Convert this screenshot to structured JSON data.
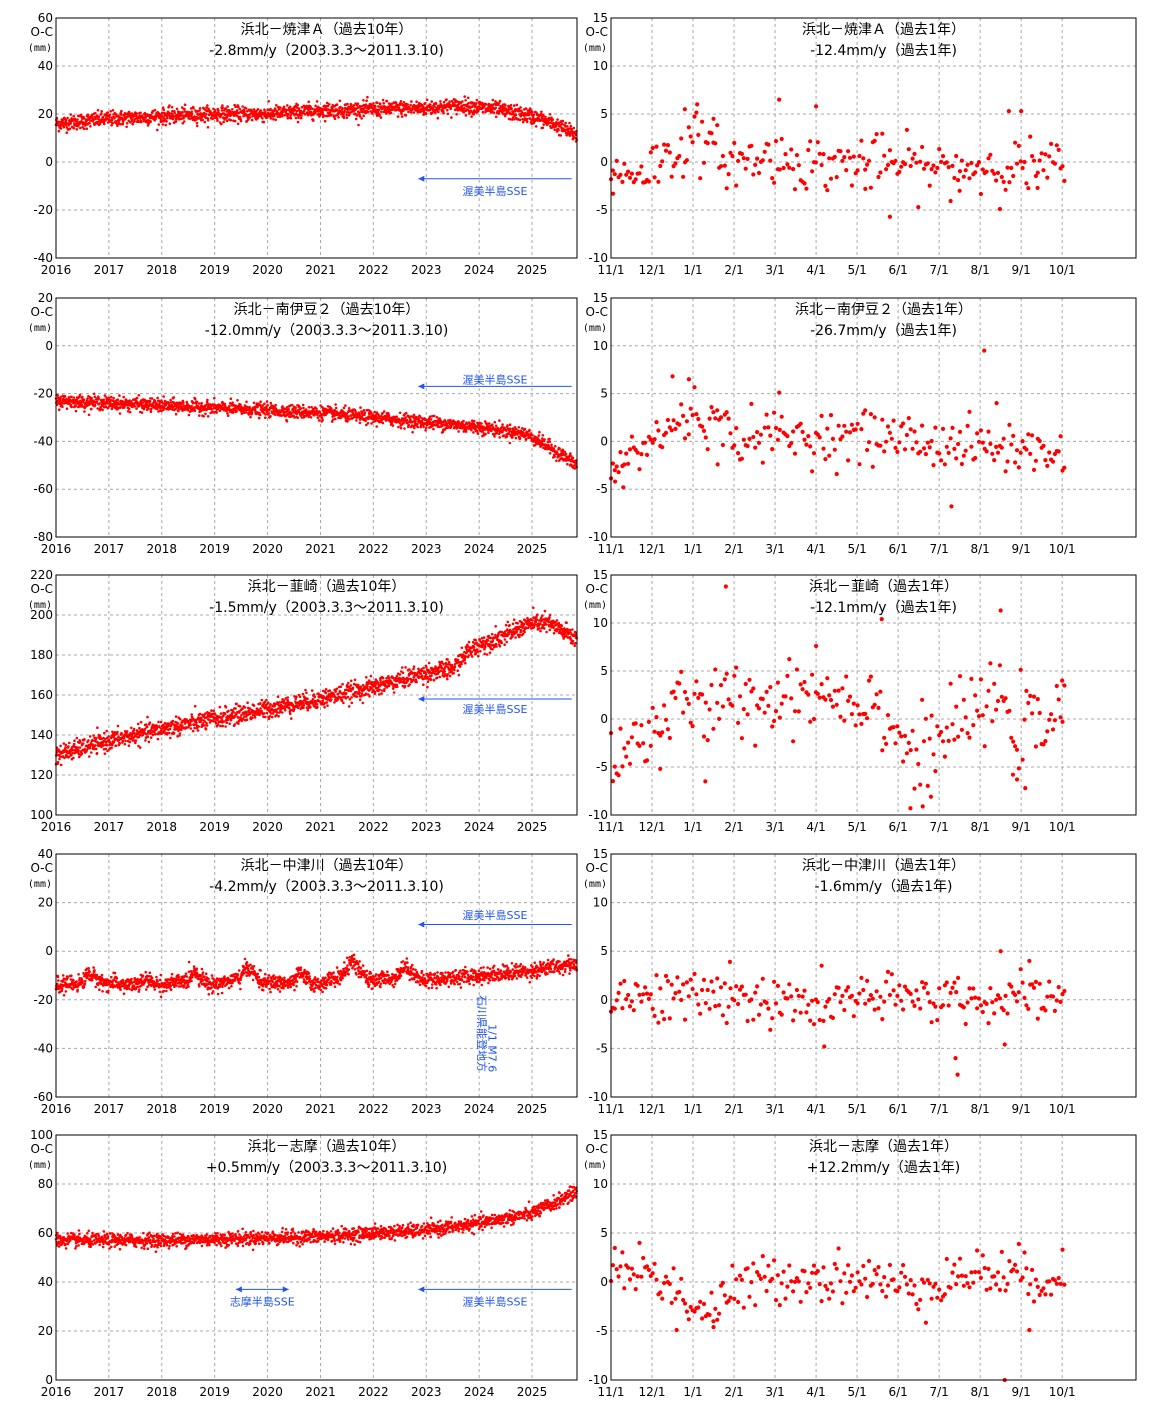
{
  "chart_data": [
    {
      "type": "scatter",
      "title": "浜北－焼津Ａ（過去10年）",
      "subtitle": "-2.8mm/y（2003.3.3～2011.3.10)",
      "ylabel": "O-C",
      "yunit": "(mm)",
      "ylim": [
        -40,
        60
      ],
      "ystep": 20,
      "xtick_labels": [
        "2016",
        "2017",
        "2018",
        "2019",
        "2020",
        "2021",
        "2022",
        "2023",
        "2024",
        "2025"
      ],
      "xlim": [
        2016,
        2025.85
      ],
      "trend": [
        [
          2016,
          16
        ],
        [
          2017,
          18
        ],
        [
          2018,
          19
        ],
        [
          2019,
          20
        ],
        [
          2020,
          20
        ],
        [
          2021,
          21.5
        ],
        [
          2022,
          22
        ],
        [
          2023,
          22.5
        ],
        [
          2023.7,
          23.5
        ],
        [
          2024.3,
          22
        ],
        [
          2025,
          19
        ],
        [
          2025.4,
          16
        ],
        [
          2025.85,
          11
        ]
      ],
      "noise": 1.6,
      "annotations": [
        {
          "text": "渥美半島SSE",
          "x_from": 2025.75,
          "x_to": 2022.85,
          "y": -7,
          "text_y": -12
        }
      ]
    },
    {
      "type": "scatter",
      "title": "浜北－焼津Ａ（過去1年）",
      "subtitle": "-12.4mm/y（過去1年)",
      "ylabel": "O-C",
      "yunit": "(mm)",
      "ylim": [
        -10,
        15
      ],
      "ystep": 5,
      "xtick_labels": [
        "11/1",
        "12/1",
        "1/1",
        "2/1",
        "3/1",
        "4/1",
        "5/1",
        "6/1",
        "7/1",
        "8/1",
        "9/1",
        "10/1"
      ],
      "xlim": [
        0,
        12.8
      ],
      "trend": [
        [
          0,
          -1.5
        ],
        [
          1,
          -0.5
        ],
        [
          1.6,
          1
        ],
        [
          2,
          2.5
        ],
        [
          2.5,
          1
        ],
        [
          3,
          0
        ],
        [
          4,
          0.5
        ],
        [
          5,
          -0.3
        ],
        [
          6,
          0
        ],
        [
          7,
          -0.2
        ],
        [
          8,
          -0.8
        ],
        [
          9,
          -0.5
        ],
        [
          10,
          -0.5
        ],
        [
          11,
          -0.5
        ]
      ],
      "noise": 1.4,
      "outliers": [
        [
          0.05,
          -3.3
        ],
        [
          1.8,
          5.5
        ],
        [
          2.1,
          6
        ],
        [
          2.5,
          4.5
        ],
        [
          4.1,
          6.5
        ],
        [
          5.0,
          5.8
        ],
        [
          6.8,
          -5.7
        ],
        [
          9.7,
          5.3
        ],
        [
          10.0,
          5.3
        ],
        [
          8.5,
          -3
        ],
        [
          10.4,
          -2.7
        ],
        [
          6.2,
          -2.8
        ]
      ]
    },
    {
      "type": "scatter",
      "title": "浜北－南伊豆２（過去10年）",
      "subtitle": "-12.0mm/y（2003.3.3～2011.3.10)",
      "ylabel": "O-C",
      "yunit": "(mm)",
      "ylim": [
        -80,
        20
      ],
      "ystep": 20,
      "xtick_labels": [
        "2016",
        "2017",
        "2018",
        "2019",
        "2020",
        "2021",
        "2022",
        "2023",
        "2024",
        "2025"
      ],
      "xlim": [
        2016,
        2025.85
      ],
      "trend": [
        [
          2016,
          -23
        ],
        [
          2017,
          -24
        ],
        [
          2018,
          -25
        ],
        [
          2019,
          -26
        ],
        [
          2020,
          -27
        ],
        [
          2021,
          -28
        ],
        [
          2022,
          -30
        ],
        [
          2023,
          -32
        ],
        [
          2024,
          -34
        ],
        [
          2024.9,
          -37
        ],
        [
          2025.3,
          -42
        ],
        [
          2025.85,
          -50
        ]
      ],
      "noise": 1.4,
      "annotations": [
        {
          "text": "渥美半島SSE",
          "x_from": 2025.75,
          "x_to": 2022.85,
          "y": -17,
          "text_y": -14
        }
      ]
    },
    {
      "type": "scatter",
      "title": "浜北－南伊豆２（過去1年）",
      "subtitle": "-26.7mm/y（過去1年)",
      "ylabel": "O-C",
      "yunit": "(mm)",
      "ylim": [
        -10,
        15
      ],
      "ystep": 5,
      "xtick_labels": [
        "11/1",
        "12/1",
        "1/1",
        "2/1",
        "3/1",
        "4/1",
        "5/1",
        "6/1",
        "7/1",
        "8/1",
        "9/1",
        "10/1"
      ],
      "xlim": [
        0,
        12.8
      ],
      "trend": [
        [
          0,
          -3
        ],
        [
          0.5,
          -1.5
        ],
        [
          1,
          0
        ],
        [
          1.5,
          1.5
        ],
        [
          2,
          3
        ],
        [
          2.5,
          2
        ],
        [
          3,
          0.5
        ],
        [
          4,
          0.5
        ],
        [
          5,
          0.5
        ],
        [
          6,
          0.5
        ],
        [
          7,
          0.5
        ],
        [
          8,
          -0.3
        ],
        [
          9,
          -0.5
        ],
        [
          10,
          -0.8
        ],
        [
          11,
          -1.5
        ]
      ],
      "noise": 1.3,
      "outliers": [
        [
          0.1,
          -4.2
        ],
        [
          0.3,
          -4.8
        ],
        [
          1.5,
          6.8
        ],
        [
          1.9,
          6.5
        ],
        [
          4.1,
          5.1
        ],
        [
          8.3,
          -6.8
        ],
        [
          9.1,
          9.5
        ],
        [
          9.4,
          4
        ],
        [
          2.6,
          -2.4
        ]
      ]
    },
    {
      "type": "scatter",
      "title": "浜北－韮崎（過去10年）",
      "subtitle": "-1.5mm/y（2003.3.3～2011.3.10)",
      "ylabel": "O-C",
      "yunit": "(mm)",
      "ylim": [
        100,
        220
      ],
      "ystep": 20,
      "xtick_labels": [
        "2016",
        "2017",
        "2018",
        "2019",
        "2020",
        "2021",
        "2022",
        "2023",
        "2024",
        "2025"
      ],
      "xlim": [
        2016,
        2025.85
      ],
      "trend": [
        [
          2016,
          130
        ],
        [
          2017,
          137
        ],
        [
          2018,
          143
        ],
        [
          2019,
          148
        ],
        [
          2020,
          153
        ],
        [
          2021,
          158
        ],
        [
          2022,
          164
        ],
        [
          2023,
          171
        ],
        [
          2023.5,
          173
        ],
        [
          2023.8,
          182
        ],
        [
          2024,
          185
        ],
        [
          2024.5,
          190
        ],
        [
          2025,
          196
        ],
        [
          2025.3,
          196
        ],
        [
          2025.85,
          188
        ]
      ],
      "noise": 2.3,
      "annotations": [
        {
          "text": "渥美半島SSE",
          "x_from": 2025.75,
          "x_to": 2022.85,
          "y": 158,
          "text_y": 153
        }
      ]
    },
    {
      "type": "scatter",
      "title": "浜北－韮崎（過去1年）",
      "subtitle": "-12.1mm/y（過去1年)",
      "ylabel": "O-C",
      "yunit": "(mm)",
      "ylim": [
        -10,
        15
      ],
      "ystep": 5,
      "xtick_labels": [
        "11/1",
        "12/1",
        "1/1",
        "2/1",
        "3/1",
        "4/1",
        "5/1",
        "6/1",
        "7/1",
        "8/1",
        "9/1",
        "10/1"
      ],
      "xlim": [
        0,
        12.8
      ],
      "trend": [
        [
          0,
          -3
        ],
        [
          0.5,
          -3
        ],
        [
          1,
          -1
        ],
        [
          1.5,
          1
        ],
        [
          2,
          1.5
        ],
        [
          2.5,
          1
        ],
        [
          3,
          2
        ],
        [
          4,
          2
        ],
        [
          4.5,
          3
        ],
        [
          5,
          3
        ],
        [
          6,
          2
        ],
        [
          6.5,
          2
        ],
        [
          7,
          -2
        ],
        [
          7.5,
          -4
        ],
        [
          8,
          -2
        ],
        [
          9,
          1
        ],
        [
          9.5,
          2
        ],
        [
          10,
          -1
        ],
        [
          11,
          0
        ]
      ],
      "noise": 1.9,
      "outliers": [
        [
          2.8,
          13.8
        ],
        [
          9.5,
          11.3
        ],
        [
          6.6,
          10.4
        ],
        [
          7.3,
          -9.3
        ],
        [
          7.6,
          -9.1
        ],
        [
          7.8,
          -8.1
        ],
        [
          10.1,
          -7.2
        ],
        [
          9.8,
          -5.8
        ],
        [
          9.9,
          -6.3
        ],
        [
          1.2,
          -5.2
        ],
        [
          2.3,
          -6.5
        ],
        [
          5.0,
          7.6
        ],
        [
          11.0,
          4
        ]
      ]
    },
    {
      "type": "scatter",
      "title": "浜北－中津川（過去10年）",
      "subtitle": "-4.2mm/y（2003.3.3～2011.3.10)",
      "ylabel": "O-C",
      "yunit": "(mm)",
      "ylim": [
        -60,
        40
      ],
      "ystep": 20,
      "xtick_labels": [
        "2016",
        "2017",
        "2018",
        "2019",
        "2020",
        "2021",
        "2022",
        "2023",
        "2024",
        "2025"
      ],
      "xlim": [
        2016,
        2025.85
      ],
      "trend": [
        [
          2016,
          -14
        ],
        [
          2016.5,
          -13
        ],
        [
          2016.6,
          -9
        ],
        [
          2016.9,
          -13
        ],
        [
          2017.5,
          -14
        ],
        [
          2017.7,
          -12
        ],
        [
          2018,
          -14
        ],
        [
          2018.5,
          -12
        ],
        [
          2018.6,
          -8
        ],
        [
          2018.9,
          -14
        ],
        [
          2019.5,
          -11
        ],
        [
          2019.6,
          -6
        ],
        [
          2019.9,
          -13
        ],
        [
          2020.5,
          -13
        ],
        [
          2020.6,
          -9
        ],
        [
          2020.9,
          -14
        ],
        [
          2021.4,
          -10
        ],
        [
          2021.6,
          -4
        ],
        [
          2021.9,
          -12
        ],
        [
          2022.4,
          -11
        ],
        [
          2022.6,
          -6
        ],
        [
          2022.9,
          -12
        ],
        [
          2024,
          -10
        ],
        [
          2025,
          -8
        ],
        [
          2025.85,
          -5
        ]
      ],
      "noise": 1.6,
      "annotations": [
        {
          "text": "渥美半島SSE",
          "x_from": 2025.75,
          "x_to": 2022.85,
          "y": 11,
          "text_y": 15
        },
        {
          "text": "石川県能登地方",
          "x_from": 2023.9,
          "x_to": 2023.9,
          "y": -18,
          "text_y": -18,
          "vertical": true
        },
        {
          "text": "1/1 M7.6",
          "x_from": 2024.1,
          "x_to": 2024.1,
          "y": -30,
          "text_y": -30,
          "vertical": true
        }
      ]
    },
    {
      "type": "scatter",
      "title": "浜北－中津川（過去1年）",
      "subtitle": "-1.6mm/y（過去1年)",
      "ylabel": "O-C",
      "yunit": "(mm)",
      "ylim": [
        -10,
        15
      ],
      "ystep": 5,
      "xtick_labels": [
        "11/1",
        "12/1",
        "1/1",
        "2/1",
        "3/1",
        "4/1",
        "5/1",
        "6/1",
        "7/1",
        "8/1",
        "9/1",
        "10/1"
      ],
      "xlim": [
        0,
        12.8
      ],
      "trend": [
        [
          0,
          0
        ],
        [
          1,
          0.5
        ],
        [
          2,
          0.2
        ],
        [
          3,
          0.5
        ],
        [
          4,
          -0.5
        ],
        [
          5,
          -0.5
        ],
        [
          6,
          0
        ],
        [
          7,
          0
        ],
        [
          8,
          0.5
        ],
        [
          9,
          0
        ],
        [
          10,
          0
        ],
        [
          11,
          0.5
        ]
      ],
      "noise": 1.3,
      "outliers": [
        [
          8.4,
          -6
        ],
        [
          8.45,
          -7.7
        ],
        [
          9.5,
          5
        ],
        [
          9.6,
          -4.6
        ],
        [
          5.2,
          -4.8
        ],
        [
          2.9,
          3.9
        ],
        [
          10.2,
          4
        ]
      ]
    },
    {
      "type": "scatter",
      "title": "浜北－志摩（過去10年）",
      "subtitle": "+0.5mm/y（2003.3.3～2011.3.10)",
      "ylabel": "O-C",
      "yunit": "(mm)",
      "ylim": [
        0,
        100
      ],
      "ystep": 20,
      "xtick_labels": [
        "2016",
        "2017",
        "2018",
        "2019",
        "2020",
        "2021",
        "2022",
        "2023",
        "2024",
        "2025"
      ],
      "xlim": [
        2016,
        2025.85
      ],
      "trend": [
        [
          2016,
          57
        ],
        [
          2017,
          57
        ],
        [
          2018,
          57
        ],
        [
          2019,
          57.5
        ],
        [
          2020,
          58
        ],
        [
          2021,
          58.5
        ],
        [
          2022,
          60
        ],
        [
          2023,
          61
        ],
        [
          2024,
          64
        ],
        [
          2025,
          68
        ],
        [
          2025.4,
          72
        ],
        [
          2025.85,
          77
        ]
      ],
      "noise": 1.4,
      "annotations": [
        {
          "text": "志摩半島SSE",
          "x_from": 2019.4,
          "x_to": 2020.4,
          "y": 37,
          "text_y": 32,
          "double": true
        },
        {
          "text": "渥美半島SSE",
          "x_from": 2025.75,
          "x_to": 2022.85,
          "y": 37,
          "text_y": 32
        }
      ]
    },
    {
      "type": "scatter",
      "title": "浜北－志摩（過去1年）",
      "subtitle": "+12.2mm/y（過去1年)",
      "ylabel": "O-C",
      "yunit": "(mm)",
      "ylim": [
        -10,
        15
      ],
      "ystep": 5,
      "xtick_labels": [
        "11/1",
        "12/1",
        "1/1",
        "2/1",
        "3/1",
        "4/1",
        "5/1",
        "6/1",
        "7/1",
        "8/1",
        "9/1",
        "10/1"
      ],
      "xlim": [
        0,
        12.8
      ],
      "trend": [
        [
          0,
          1.5
        ],
        [
          1,
          1
        ],
        [
          1.5,
          -0.5
        ],
        [
          2,
          -2.5
        ],
        [
          2.5,
          -3
        ],
        [
          3,
          -1
        ],
        [
          4,
          0.5
        ],
        [
          5,
          0.5
        ],
        [
          6,
          0.5
        ],
        [
          7,
          -0.5
        ],
        [
          8,
          0
        ],
        [
          9,
          1
        ],
        [
          10,
          0.5
        ],
        [
          11,
          0.5
        ]
      ],
      "noise": 1.3,
      "outliers": [
        [
          9.6,
          -10
        ],
        [
          10.2,
          -4.9
        ],
        [
          1.6,
          -4.9
        ],
        [
          2.5,
          -4.6
        ]
      ]
    }
  ]
}
